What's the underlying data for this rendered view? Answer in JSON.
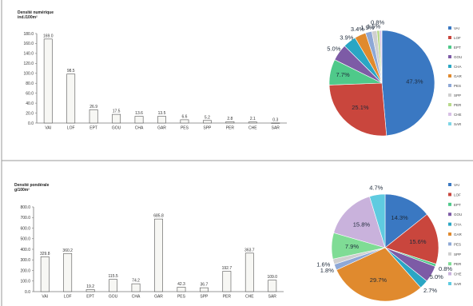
{
  "chart_data": [
    {
      "type": "bar",
      "title": "Densité numérique",
      "ylabel": "ind./100m²",
      "categories": [
        "VAI",
        "LOF",
        "EPT",
        "GOU",
        "CHA",
        "GAR",
        "PES",
        "SPP",
        "PER",
        "CHE",
        "SAR"
      ],
      "values": [
        169.0,
        98.5,
        26.9,
        17.5,
        13.6,
        13.5,
        6.6,
        5.2,
        2.8,
        2.1,
        0.3
      ],
      "value_labels": [
        "169.0",
        "98.5",
        "26.9",
        "17.5",
        "13.6",
        "13.5",
        "6.6",
        "5.2",
        "2.8",
        "2.1",
        "0.3"
      ],
      "ylim": [
        0,
        180
      ],
      "yticks": [
        "0.0",
        "20.0",
        "40.0",
        "60.0",
        "80.0",
        "100.0",
        "120.0",
        "140.0",
        "160.0",
        "180.0"
      ],
      "grid": false
    },
    {
      "type": "pie",
      "legend_position": "right",
      "labels": [
        "VAI",
        "LOF",
        "EPT",
        "GOU",
        "CHA",
        "GAR",
        "PES",
        "SPP",
        "PER",
        "CHE",
        "SAR"
      ],
      "values": [
        47.3,
        25.1,
        7.7,
        5.0,
        3.9,
        3.4,
        1.9,
        1.5,
        0.8,
        0.6,
        0.1
      ],
      "data_labels": [
        "47.3%",
        "25.1%",
        "7.7%",
        "5.0%",
        "3.9%",
        "3.4%",
        "1.9%",
        "1.5%",
        "0.8%",
        "",
        ""
      ],
      "colors": [
        "#3a78c2",
        "#c9463d",
        "#4fc98a",
        "#7d5ba6",
        "#2aa6c4",
        "#e08a2e",
        "#8ea8d6",
        "#cfcfcf",
        "#b8d98b",
        "#d8c0e6",
        "#7fd6e6"
      ]
    },
    {
      "type": "bar",
      "title": "Densité pondérale",
      "ylabel": "g/100m²",
      "categories": [
        "VAI",
        "LOF",
        "EPT",
        "GOU",
        "CHA",
        "GAR",
        "PES",
        "SPP",
        "PER",
        "CHE",
        "SAR"
      ],
      "values": [
        329.8,
        360.2,
        19.2,
        115.5,
        74.2,
        685.8,
        42.3,
        36.7,
        192.7,
        363.7,
        109.0
      ],
      "value_labels": [
        "329.8",
        "360.2",
        "19.2",
        "115.5",
        "74.2",
        "685.8",
        "42.3",
        "36.7",
        "192.7",
        "363.7",
        "109.0"
      ],
      "ylim": [
        0,
        800
      ],
      "yticks": [
        "0.0",
        "100.0",
        "200.0",
        "300.0",
        "400.0",
        "500.0",
        "600.0",
        "700.0",
        "800.0"
      ],
      "grid": false
    },
    {
      "type": "pie",
      "legend_position": "right",
      "labels": [
        "VAI",
        "LOF",
        "EPT",
        "GOU",
        "CHA",
        "GAR",
        "PES",
        "SPP",
        "PER",
        "CHE",
        "SAR"
      ],
      "values": [
        14.3,
        15.6,
        0.8,
        5.0,
        2.7,
        29.7,
        1.8,
        1.6,
        7.9,
        15.8,
        4.7
      ],
      "data_labels": [
        "14.3%",
        "15.6%",
        "0.8%",
        "5.0%",
        "2.7%",
        "29.7%",
        "1.8%",
        "1.6%",
        "7.9%",
        "15.8%",
        "4.7%"
      ],
      "colors": [
        "#3a78c2",
        "#c9463d",
        "#4fc98a",
        "#7d5ba6",
        "#2aa6c4",
        "#e08a2e",
        "#8ea8d6",
        "#cfcfcf",
        "#7fdc95",
        "#c9b2dc",
        "#5fcbe0"
      ]
    }
  ]
}
